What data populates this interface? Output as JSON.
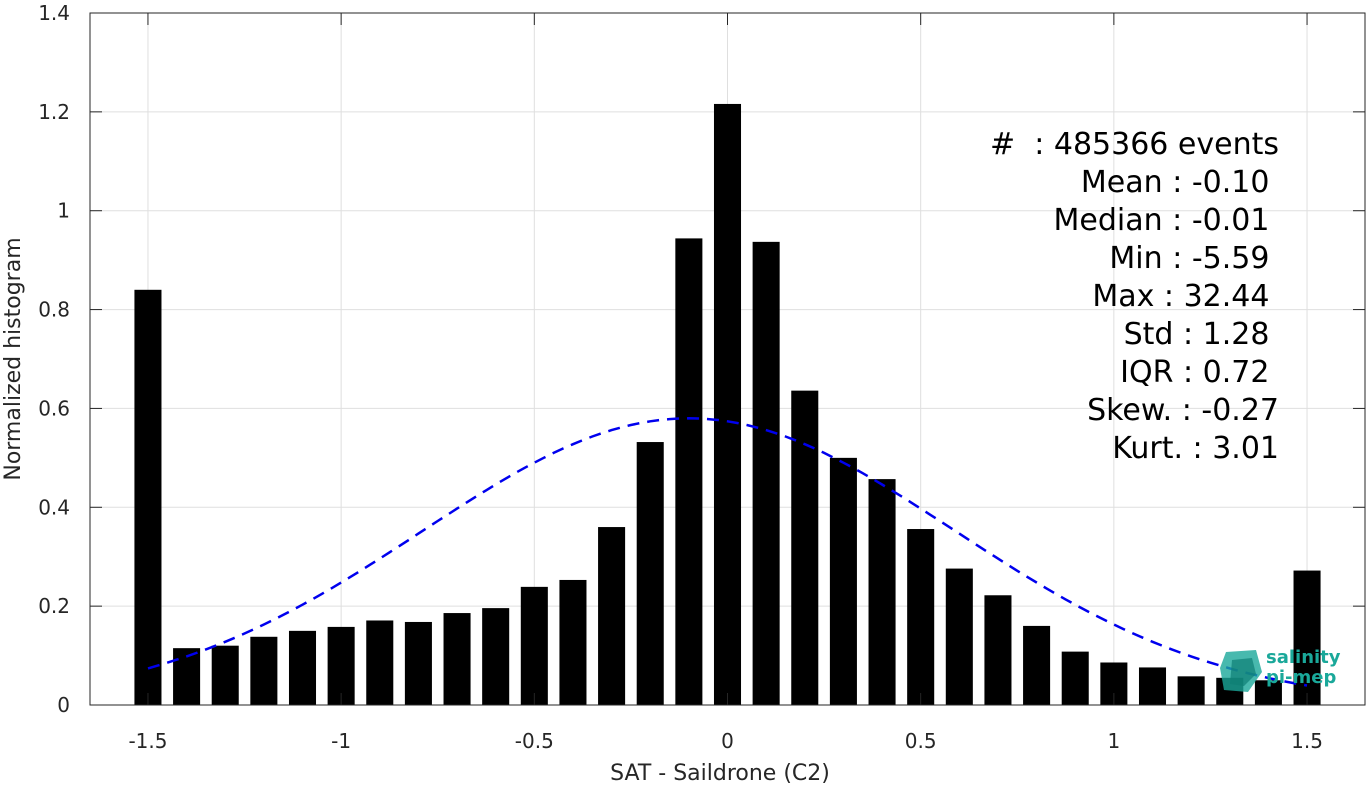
{
  "chart_data": {
    "type": "bar",
    "xlabel": "SAT - Saildrone (C2)",
    "ylabel": "Normalized histogram",
    "xlim": [
      -1.65,
      1.65
    ],
    "ylim": [
      0,
      1.4
    ],
    "grid": true,
    "x_ticks": [
      "-1.5",
      "-1",
      "-0.5",
      "0",
      "0.5",
      "1",
      "1.5"
    ],
    "x_tick_values": [
      -1.5,
      -1,
      -0.5,
      0,
      0.5,
      1,
      1.5
    ],
    "y_ticks": [
      "0",
      "0.2",
      "0.4",
      "0.6",
      "0.8",
      "1",
      "1.2",
      "1.4"
    ],
    "y_tick_values": [
      0,
      0.2,
      0.4,
      0.6,
      0.8,
      1.0,
      1.2,
      1.4
    ],
    "bar_color": "#000000",
    "bars": {
      "x": [
        -1.5,
        -1.4,
        -1.3,
        -1.2,
        -1.1,
        -1.0,
        -0.9,
        -0.8,
        -0.7,
        -0.6,
        -0.5,
        -0.4,
        -0.3,
        -0.2,
        -0.1,
        0.0,
        0.1,
        0.2,
        0.3,
        0.4,
        0.5,
        0.6,
        0.7,
        0.8,
        0.9,
        1.0,
        1.1,
        1.2,
        1.3,
        1.4,
        1.5
      ],
      "values": [
        0.84,
        0.115,
        0.12,
        0.138,
        0.15,
        0.158,
        0.171,
        0.168,
        0.186,
        0.196,
        0.239,
        0.253,
        0.36,
        0.532,
        0.944,
        1.216,
        0.937,
        0.636,
        0.5,
        0.457,
        0.356,
        0.276,
        0.222,
        0.16,
        0.108,
        0.086,
        0.076,
        0.058,
        0.055,
        0.05,
        0.272
      ]
    },
    "fit_curve": {
      "style": "dashed",
      "color": "#0000ee",
      "mean": -0.1,
      "std": 0.69,
      "peak": 0.58
    },
    "stats": {
      "lines": [
        "#  : 485366 events",
        "Mean : -0.10 ",
        "Median : -0.01 ",
        "Min : -5.59 ",
        "Max : 32.44 ",
        "Std : 1.28 ",
        "IQR : 0.72 ",
        "Skew. : -0.27",
        "Kurt. : 3.01"
      ]
    },
    "logo": {
      "line1": "salinity",
      "line2": "pi-mep",
      "color": "#1aa89a"
    }
  }
}
